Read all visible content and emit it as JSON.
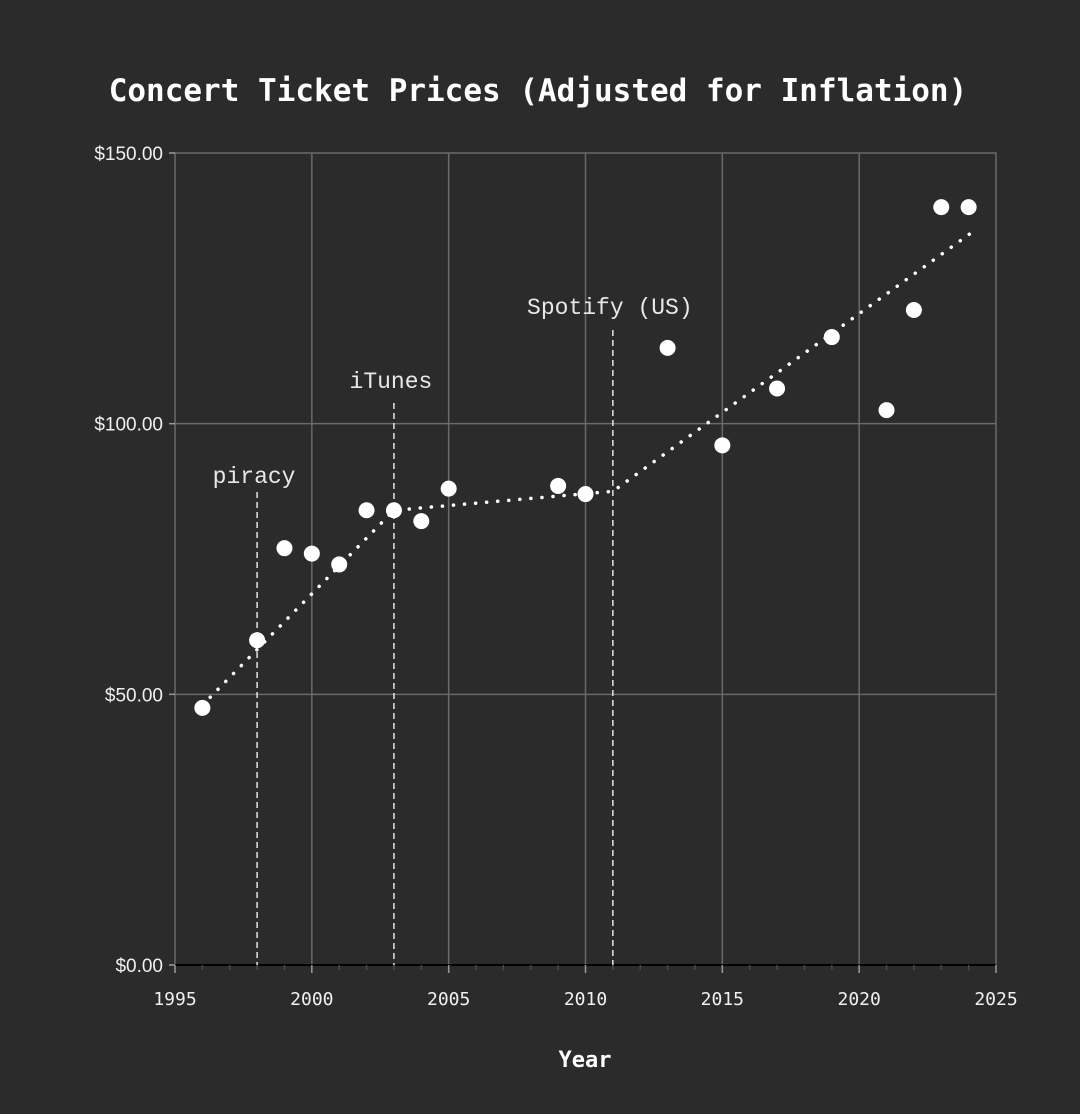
{
  "chart_data": {
    "type": "scatter",
    "title": "Concert Ticket Prices (Adjusted for Inflation)",
    "xlabel": "Year",
    "ylabel": "",
    "xlim": [
      1995,
      2025
    ],
    "ylim": [
      0,
      150
    ],
    "xticks": [
      "1995",
      "2000",
      "2005",
      "2010",
      "2015",
      "2020",
      "2025"
    ],
    "yticks": [
      "$0.00",
      "$50.00",
      "$100.00",
      "$150.00"
    ],
    "grid": true,
    "points": [
      {
        "x": 1996,
        "y": 47.5
      },
      {
        "x": 1998,
        "y": 60.0
      },
      {
        "x": 1999,
        "y": 77.0
      },
      {
        "x": 2000,
        "y": 76.0
      },
      {
        "x": 2001,
        "y": 74.0
      },
      {
        "x": 2002,
        "y": 84.0
      },
      {
        "x": 2003,
        "y": 84.0
      },
      {
        "x": 2004,
        "y": 82.0
      },
      {
        "x": 2005,
        "y": 88.0
      },
      {
        "x": 2009,
        "y": 88.5
      },
      {
        "x": 2010,
        "y": 87.0
      },
      {
        "x": 2013,
        "y": 114.0
      },
      {
        "x": 2015,
        "y": 96.0
      },
      {
        "x": 2017,
        "y": 106.5
      },
      {
        "x": 2019,
        "y": 116.0
      },
      {
        "x": 2021,
        "y": 102.5
      },
      {
        "x": 2022,
        "y": 121.0
      },
      {
        "x": 2023,
        "y": 140.0
      },
      {
        "x": 2024,
        "y": 140.0
      }
    ],
    "trend_line": [
      {
        "x": 1996,
        "y": 48.0
      },
      {
        "x": 2003,
        "y": 84.0
      },
      {
        "x": 2011,
        "y": 87.5
      },
      {
        "x": 2024.3,
        "y": 136.0
      }
    ],
    "annotations": [
      {
        "label": "piracy",
        "x": 1998
      },
      {
        "label": "iTunes",
        "x": 2003
      },
      {
        "label": "Spotify (US)",
        "x": 2011
      }
    ],
    "colors": {
      "background": "#2b2b2b",
      "grid": "#6a6a6a",
      "points": "#ffffff",
      "trend": "#ffffff",
      "text": "#f0f0f0"
    }
  }
}
